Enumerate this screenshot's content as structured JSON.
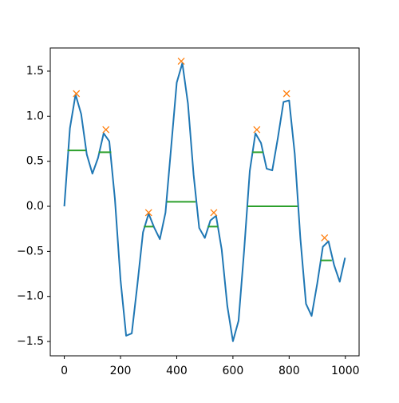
{
  "chart_data": {
    "type": "line",
    "x": [
      0,
      20,
      40,
      60,
      80,
      100,
      120,
      140,
      160,
      180,
      200,
      220,
      240,
      260,
      280,
      300,
      320,
      340,
      360,
      380,
      400,
      420,
      440,
      460,
      480,
      500,
      520,
      540,
      560,
      580,
      600,
      620,
      640,
      660,
      680,
      700,
      720,
      740,
      760,
      780,
      800,
      820,
      840,
      860,
      880,
      900,
      920,
      940,
      960,
      980,
      999
    ],
    "series": [
      {
        "color": "#1f77b4",
        "values": [
          0,
          0.867,
          1.24,
          1.024,
          0.575,
          0.362,
          0.537,
          0.81,
          0.722,
          0.084,
          -0.815,
          -1.436,
          -1.41,
          -0.869,
          -0.289,
          -0.081,
          -0.237,
          -0.364,
          -0.07,
          0.651,
          1.372,
          1.588,
          1.139,
          0.352,
          -0.24,
          -0.351,
          -0.156,
          -0.105,
          -0.479,
          -1.105,
          -1.497,
          -1.27,
          -0.483,
          0.393,
          0.81,
          0.702,
          0.418,
          0.399,
          0.761,
          1.158,
          1.175,
          0.58,
          -0.356,
          -1.082,
          -1.216,
          -0.856,
          -0.449,
          -0.388,
          -0.652,
          -0.837,
          -0.571
        ]
      }
    ],
    "peaks": {
      "color": "#ff7f0e",
      "x": [
        43,
        148,
        300,
        416,
        532,
        685,
        791,
        926
      ],
      "values": [
        1.25,
        0.85,
        -0.07,
        1.61,
        -0.07,
        0.85,
        1.25,
        -0.35
      ]
    },
    "widths": {
      "color": "#2ca02c",
      "y": [
        0.62,
        0.6,
        -0.225,
        0.05,
        -0.225,
        0.6,
        0.0,
        -0.6
      ],
      "xmin": [
        11,
        122,
        283,
        365,
        510,
        669,
        652,
        912
      ],
      "xmax": [
        77,
        167,
        317,
        467,
        547,
        708,
        830,
        952
      ]
    },
    "xlim": [
      -49.95,
      1048.95
    ],
    "ylim": [
      -1.659,
      1.757
    ],
    "xticks": [
      0,
      200,
      400,
      600,
      800,
      1000
    ],
    "yticks": [
      {
        "value": -1.5,
        "label": "−1.5"
      },
      {
        "value": -1.0,
        "label": "−1.0"
      },
      {
        "value": -0.5,
        "label": "−0.5"
      },
      {
        "value": 0,
        "label": "0.0"
      },
      0.5,
      {
        "value": 1.0,
        "label": "1.0"
      },
      1.5
    ]
  }
}
